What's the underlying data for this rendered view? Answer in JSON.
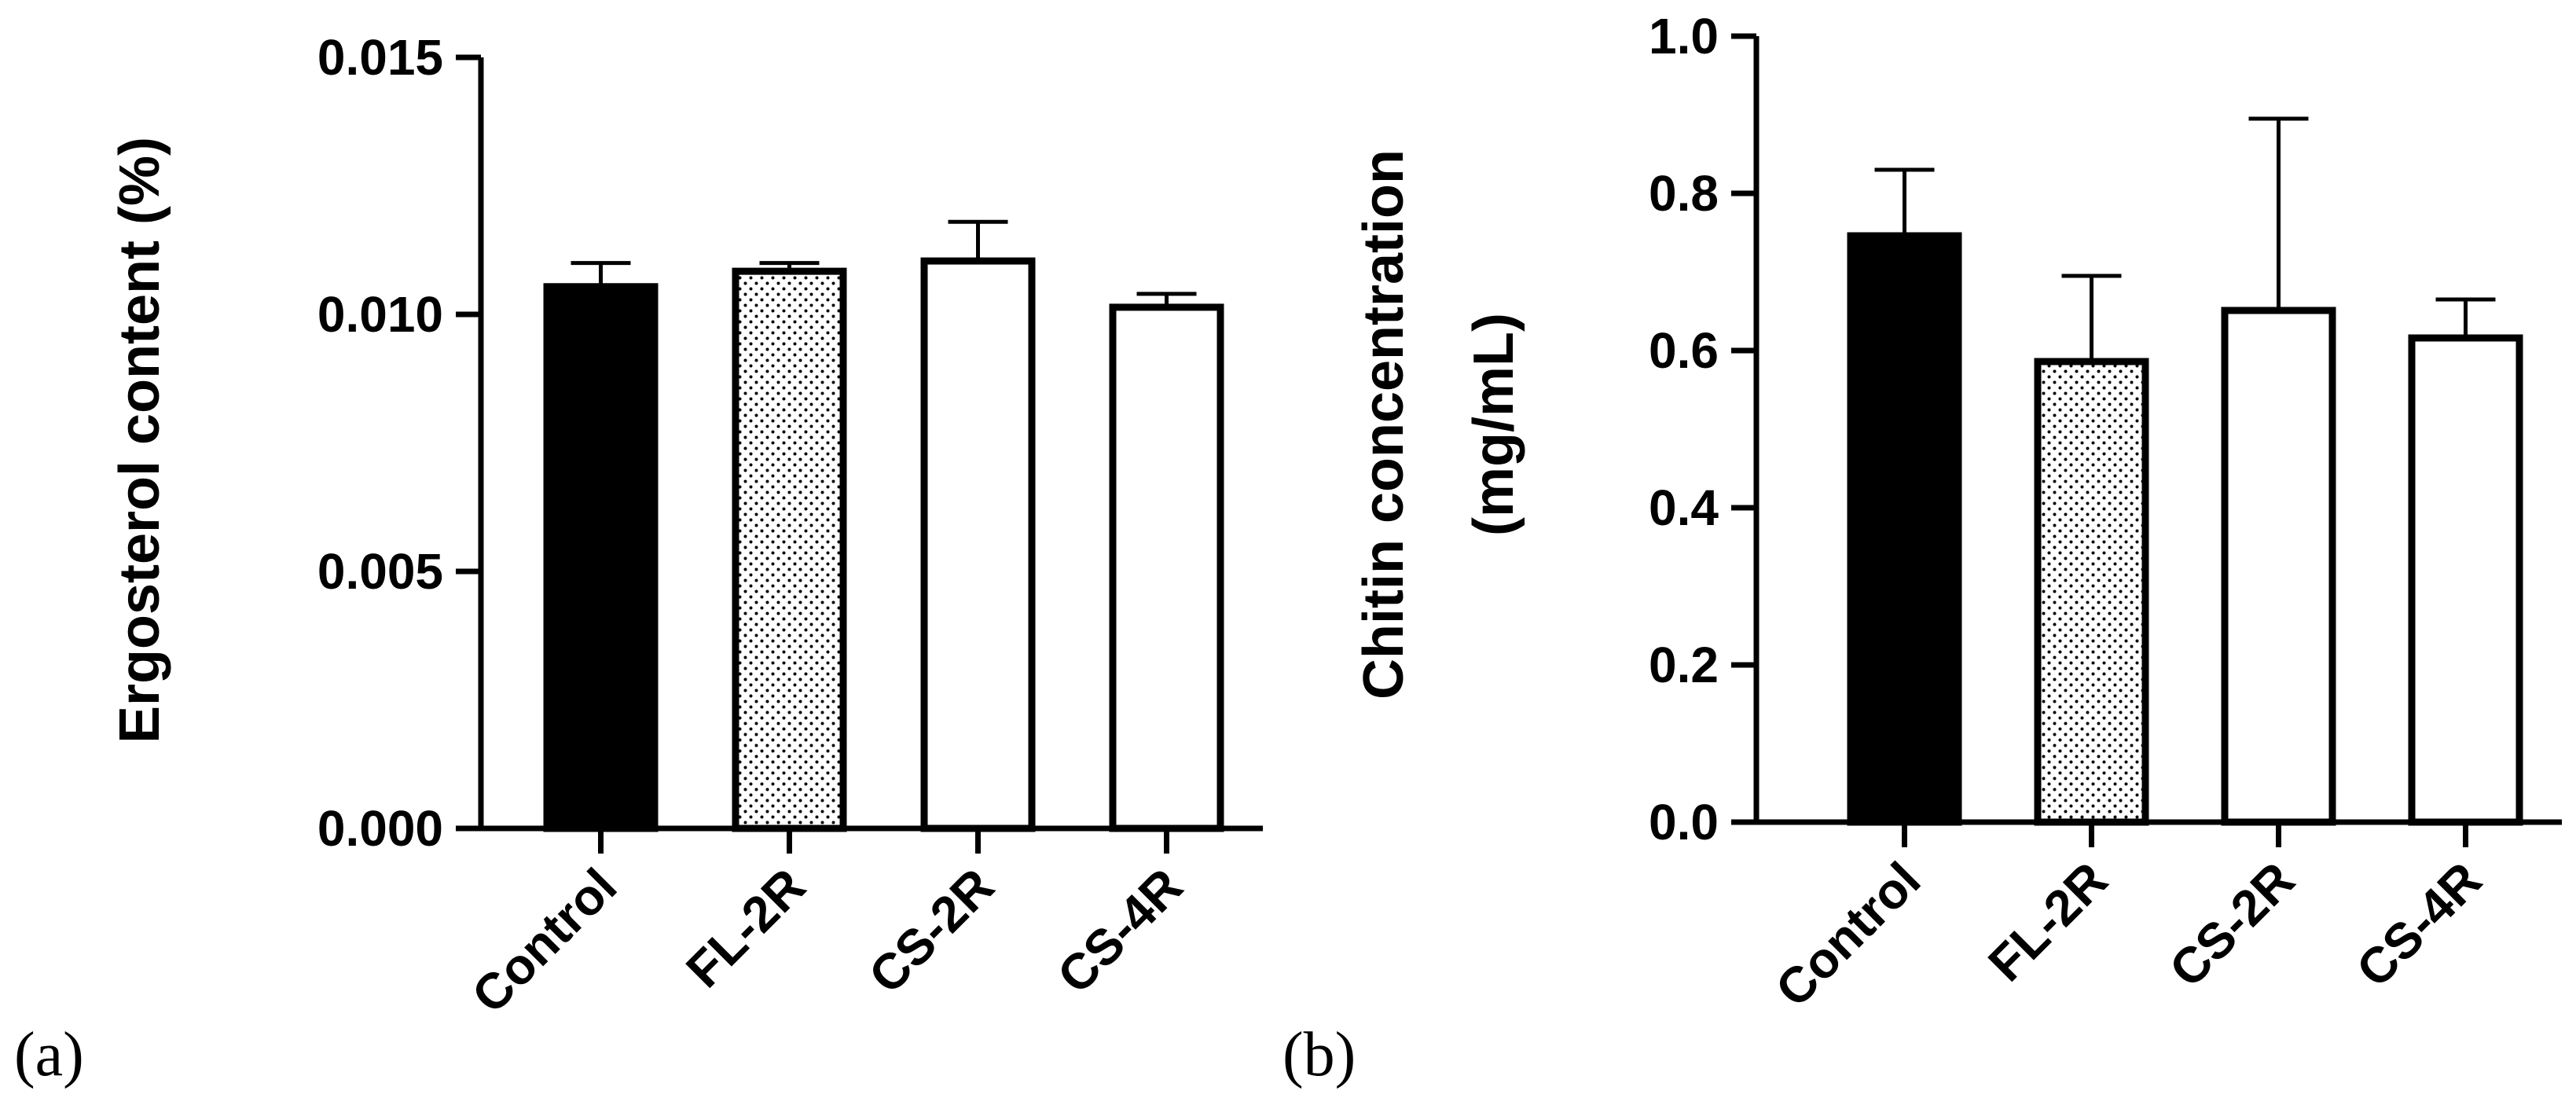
{
  "chart_data": [
    {
      "type": "bar",
      "panel_label": "(a)",
      "categories": [
        "Control",
        "FL-2R",
        "CS-2R",
        "CS-4R"
      ],
      "values": [
        0.0106,
        0.0109,
        0.0111,
        0.0102
      ],
      "error_plus": [
        0.0004,
        0.0001,
        0.0007,
        0.0002
      ],
      "fills": [
        "solid",
        "dotted",
        "open",
        "open"
      ],
      "ylabel": "Ergosterol content (%)",
      "ylim": [
        0,
        0.015
      ],
      "yticks": [
        "0.000",
        "0.005",
        "0.010",
        "0.015"
      ],
      "ytick_values": [
        0,
        0.005,
        0.01,
        0.015
      ],
      "grid": false
    },
    {
      "type": "bar",
      "panel_label": "(b)",
      "categories": [
        "Control",
        "FL-2R",
        "CS-2R",
        "CS-4R"
      ],
      "values": [
        0.75,
        0.59,
        0.655,
        0.62
      ],
      "error_plus": [
        0.08,
        0.105,
        0.24,
        0.045
      ],
      "fills": [
        "solid",
        "dotted",
        "open",
        "open"
      ],
      "ylabel": "Chitin concentration",
      "ylabel_line2": "(mg/mL)",
      "ylim": [
        0,
        1.0
      ],
      "yticks": [
        "0.0",
        "0.2",
        "0.4",
        "0.6",
        "0.8",
        "1.0"
      ],
      "ytick_values": [
        0,
        0.2,
        0.4,
        0.6,
        0.8,
        1.0
      ],
      "grid": false
    }
  ]
}
